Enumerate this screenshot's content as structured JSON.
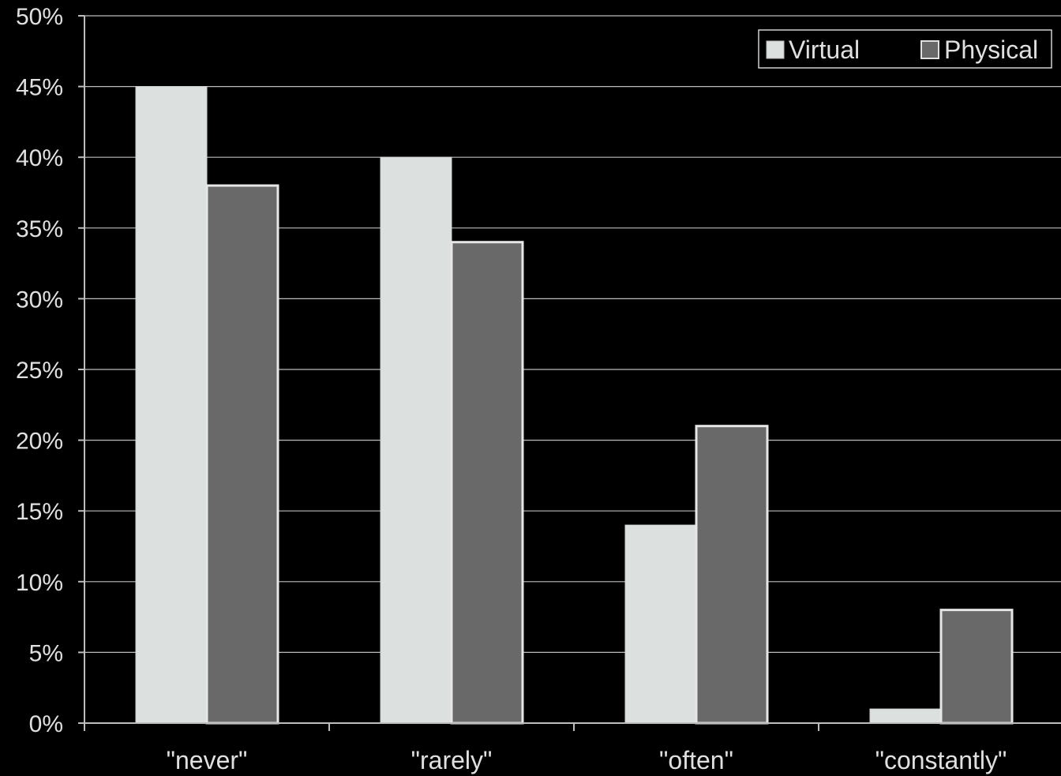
{
  "chart_data": {
    "type": "bar",
    "categories": [
      "\"never\"",
      "\"rarely\"",
      "\"often\"",
      "\"constantly\""
    ],
    "series": [
      {
        "name": "Virtual",
        "values": [
          45,
          40,
          14,
          1
        ],
        "color": "#dce0de"
      },
      {
        "name": "Physical",
        "values": [
          38,
          34,
          21,
          8
        ],
        "color": "#696969"
      }
    ],
    "ylim": [
      0,
      50
    ],
    "yticks": [
      "0%",
      "5%",
      "10%",
      "15%",
      "20%",
      "25%",
      "30%",
      "35%",
      "40%",
      "45%",
      "50%"
    ],
    "ytick_values": [
      0,
      5,
      10,
      15,
      20,
      25,
      30,
      35,
      40,
      45,
      50
    ],
    "grid": true,
    "legend": "top-right",
    "title": "",
    "xlabel": "",
    "ylabel": ""
  }
}
